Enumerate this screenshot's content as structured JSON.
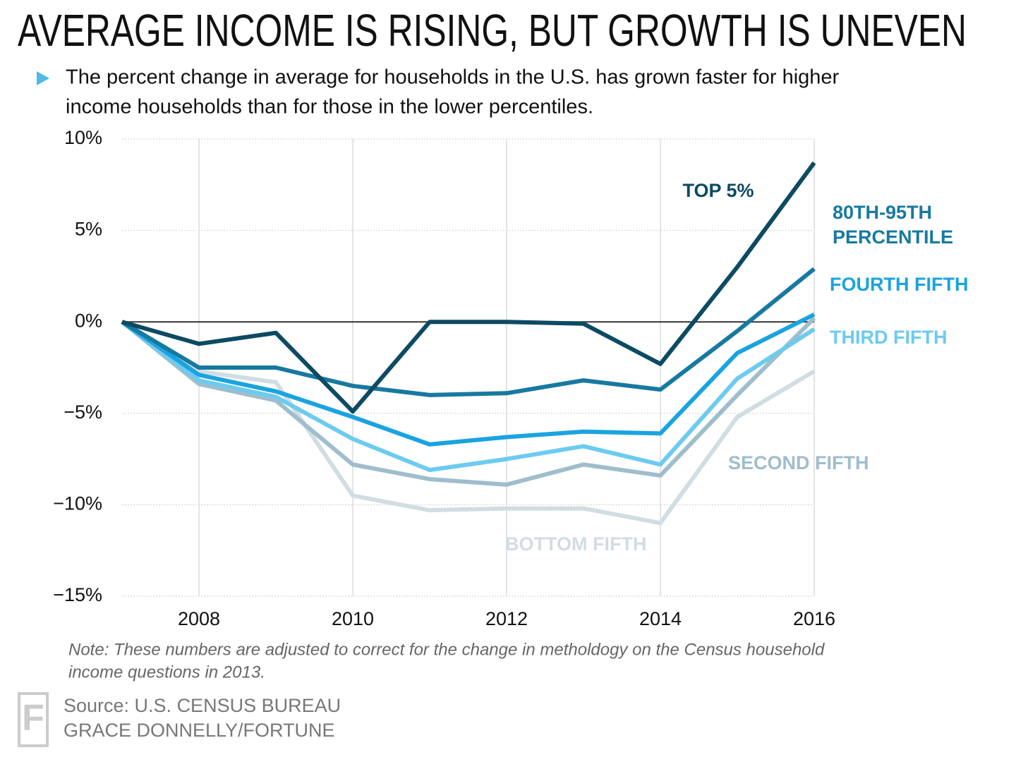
{
  "chart_data": {
    "type": "line",
    "title": "AVERAGE INCOME IS RISING, BUT GROWTH IS UNEVEN",
    "subtitle": [
      "The percent change in average for households in the U.S. has grown faster for higher",
      "income households than for those in the lower percentiles."
    ],
    "note": [
      "Note: These numbers are adjusted to correct for the change in metholdogy on the Census household",
      "income questions in 2013."
    ],
    "source": [
      "Source: U.S. CENSUS BUREAU",
      "GRACE DONNELLY/FORTUNE"
    ],
    "logo": "F",
    "x": [
      2007,
      2008,
      2009,
      2010,
      2011,
      2012,
      2013,
      2014,
      2015,
      2016
    ],
    "xlim": [
      2007,
      2016
    ],
    "xticks": [
      2008,
      2010,
      2012,
      2014,
      2016
    ],
    "ylim": [
      -15,
      10
    ],
    "yticks": [
      {
        "value": 10,
        "label": "10%"
      },
      {
        "value": 5,
        "label": "5%"
      },
      {
        "value": 0,
        "label": "0%"
      },
      {
        "value": -5,
        "label": "−5%"
      },
      {
        "value": -10,
        "label": "−10%"
      },
      {
        "value": -15,
        "label": "−15%"
      }
    ],
    "grid": true,
    "series": [
      {
        "name": "TOP 5%",
        "color": "#0d4a63",
        "values": [
          0,
          -1.2,
          -0.6,
          -4.9,
          0,
          0,
          -0.1,
          -2.3,
          3.0,
          8.7
        ]
      },
      {
        "name": "80TH-95TH PERCENTILE",
        "color": "#1879a0",
        "values": [
          0,
          -2.5,
          -2.5,
          -3.5,
          -4.0,
          -3.9,
          -3.2,
          -3.7,
          -0.5,
          2.9
        ]
      },
      {
        "name": "FOURTH FIFTH",
        "color": "#1aa3e0",
        "values": [
          0,
          -2.9,
          -3.8,
          -5.2,
          -6.7,
          -6.3,
          -6.0,
          -6.1,
          -1.7,
          0.4
        ]
      },
      {
        "name": "THIRD FIFTH",
        "color": "#6ccbef",
        "values": [
          0,
          -3.2,
          -4.1,
          -6.4,
          -8.1,
          -7.5,
          -6.8,
          -7.8,
          -3.1,
          -0.4
        ]
      },
      {
        "name": "SECOND FIFTH",
        "color": "#9fbdcc",
        "values": [
          0,
          -3.4,
          -4.3,
          -7.8,
          -8.6,
          -8.9,
          -7.8,
          -8.4,
          -4.0,
          0.2
        ]
      },
      {
        "name": "BOTTOM FIFTH",
        "color": "#d0dde3",
        "values": [
          0,
          -2.7,
          -3.3,
          -9.5,
          -10.3,
          -10.2,
          -10.2,
          -11.0,
          -5.2,
          -2.7
        ]
      }
    ]
  }
}
